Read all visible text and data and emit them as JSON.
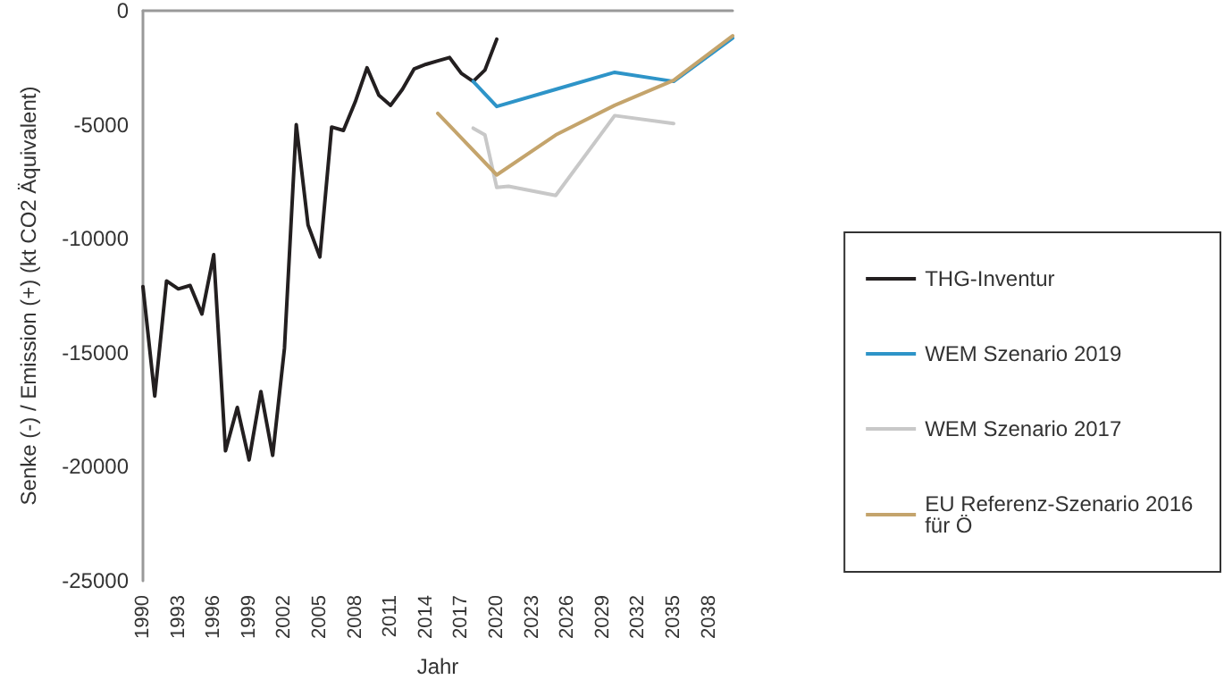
{
  "chart_data": {
    "type": "line",
    "xlabel": "Jahr",
    "ylabel": "Senke (-) / Emission (+) (kt CO2 Äquivalent)",
    "categories": [
      "1990",
      null,
      null,
      "1993",
      null,
      null,
      "1996",
      null,
      null,
      "1999",
      null,
      null,
      "2002",
      null,
      null,
      "2005",
      null,
      null,
      "2008",
      null,
      null,
      "2011",
      null,
      null,
      "2014",
      null,
      null,
      "2017",
      null,
      null,
      "2020",
      null,
      null,
      "2023",
      null,
      null,
      "2026",
      null,
      null,
      "2029",
      null,
      null,
      "2032",
      null,
      null,
      "2035",
      null,
      null,
      "2038",
      null,
      null
    ],
    "series": [
      {
        "name": "THG-Inventur",
        "color": "#231f20",
        "values": [
          -12100,
          -16900,
          -11850,
          -12200,
          -12050,
          -13300,
          -10700,
          -19300,
          -17400,
          -19700,
          -16700,
          -19500,
          -14800,
          -5000,
          -9400,
          -10800,
          -5100,
          -5250,
          -4000,
          -2500,
          -3700,
          -4150,
          -3450,
          -2550,
          -2350,
          -2200,
          -2050,
          -2750,
          -3100,
          -2600,
          -1250,
          null,
          null,
          null,
          null,
          null,
          null,
          null,
          null,
          null,
          null,
          null,
          null,
          null,
          null,
          null,
          null,
          null,
          null,
          null,
          null
        ]
      },
      {
        "name": "WEM Szenario 2019",
        "color": "#2e94c8",
        "values": [
          null,
          null,
          null,
          null,
          null,
          null,
          null,
          null,
          null,
          null,
          null,
          null,
          null,
          null,
          null,
          null,
          null,
          null,
          null,
          null,
          null,
          null,
          null,
          null,
          null,
          null,
          null,
          null,
          -3100,
          null,
          -4200,
          null,
          null,
          null,
          null,
          -3450,
          null,
          null,
          null,
          null,
          -2700,
          null,
          null,
          null,
          null,
          -3100,
          null,
          null,
          null,
          null,
          -1200
        ]
      },
      {
        "name": "WEM Szenario 2017",
        "color": "#c8c8c8",
        "values": [
          null,
          null,
          null,
          null,
          null,
          null,
          null,
          null,
          null,
          null,
          null,
          null,
          null,
          null,
          null,
          null,
          null,
          null,
          null,
          null,
          null,
          null,
          null,
          null,
          null,
          null,
          null,
          null,
          -5150,
          -5450,
          -7750,
          -7700,
          null,
          null,
          null,
          -8100,
          null,
          null,
          null,
          null,
          -4600,
          null,
          null,
          null,
          null,
          -4950,
          null,
          null,
          null,
          null,
          null
        ]
      },
      {
        "name": "EU Referenz-Szenario 2016 für Ö",
        "color": "#c4a46c",
        "values": [
          null,
          null,
          null,
          null,
          null,
          null,
          null,
          null,
          null,
          null,
          null,
          null,
          null,
          null,
          null,
          null,
          null,
          null,
          null,
          null,
          null,
          null,
          null,
          null,
          null,
          -4500,
          null,
          null,
          null,
          null,
          -7200,
          null,
          null,
          null,
          null,
          -5450,
          null,
          null,
          null,
          null,
          -4150,
          null,
          null,
          null,
          null,
          -3050,
          null,
          null,
          null,
          null,
          -1100
        ]
      }
    ],
    "ylim": [
      -25000,
      0
    ],
    "yticks": [
      -25000,
      -20000,
      -15000,
      -10000,
      -5000,
      0
    ],
    "grid": false,
    "legend": "right",
    "marker": "none",
    "line_style": "solid"
  }
}
